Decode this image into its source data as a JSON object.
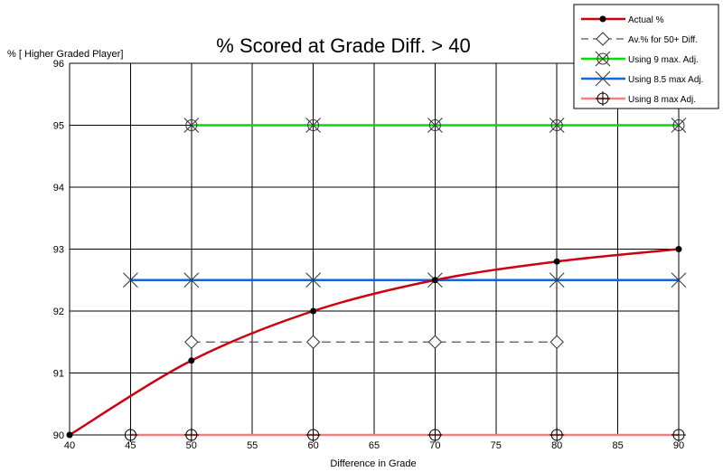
{
  "chart_data": {
    "type": "line",
    "title": "% Scored at Grade Diff. > 40",
    "xlabel": "Difference in Grade",
    "ylabel": "% [ Higher Graded Player]",
    "xlim": [
      40,
      90
    ],
    "ylim": [
      90,
      96
    ],
    "x_ticks": [
      40,
      45,
      50,
      55,
      60,
      65,
      70,
      75,
      80,
      85,
      90
    ],
    "y_ticks": [
      90,
      91,
      92,
      93,
      94,
      95,
      96
    ],
    "grid": true,
    "legend_position": "top-right",
    "series": [
      {
        "name": "Actual %",
        "color": "#cc0011",
        "marker": "dot",
        "style": "smooth",
        "points": [
          [
            40,
            90.0
          ],
          [
            50,
            91.2
          ],
          [
            60,
            92.0
          ],
          [
            70,
            92.5
          ],
          [
            80,
            92.8
          ],
          [
            90,
            93.0
          ]
        ]
      },
      {
        "name": "Av.%  for 50+ Diff.",
        "color": "#555555",
        "marker": "diamond",
        "style": "dashed",
        "points": [
          [
            50,
            91.5
          ],
          [
            60,
            91.5
          ],
          [
            70,
            91.5
          ],
          [
            80,
            91.5
          ]
        ]
      },
      {
        "name": "Using 9 max. Adj.",
        "color": "#00dd00",
        "marker": "circle-x",
        "style": "solid",
        "points": [
          [
            50,
            95.0
          ],
          [
            60,
            95.0
          ],
          [
            70,
            95.0
          ],
          [
            80,
            95.0
          ],
          [
            90,
            95.0
          ]
        ]
      },
      {
        "name": "Using 8.5 max Adj.",
        "color": "#1166dd",
        "marker": "x",
        "style": "solid",
        "points": [
          [
            45,
            92.5
          ],
          [
            50,
            92.5
          ],
          [
            60,
            92.5
          ],
          [
            70,
            92.5
          ],
          [
            80,
            92.5
          ],
          [
            90,
            92.5
          ]
        ]
      },
      {
        "name": "Using 8 max Adj.",
        "color": "#f08080",
        "marker": "circle-plus",
        "style": "solid",
        "points": [
          [
            45,
            90.0
          ],
          [
            50,
            90.0
          ],
          [
            60,
            90.0
          ],
          [
            70,
            90.0
          ],
          [
            80,
            90.0
          ],
          [
            90,
            90.0
          ]
        ]
      }
    ]
  }
}
